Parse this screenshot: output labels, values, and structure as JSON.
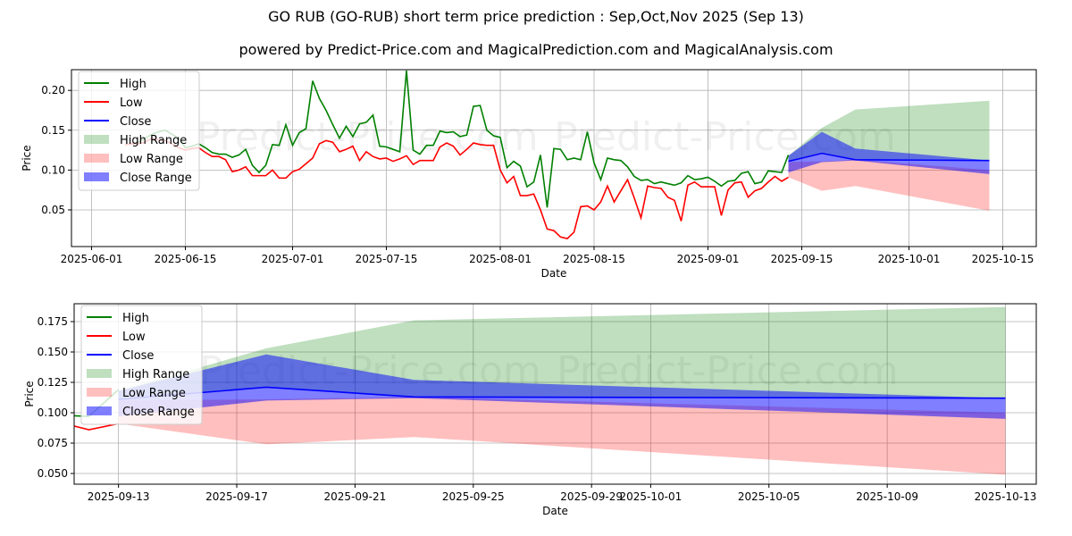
{
  "title": "GO RUB (GO-RUB) short term price prediction : Sep,Oct,Nov 2025 (Sep 13)",
  "subtitle": "powered by Predict-Price.com and MagicalPrediction.com and MagicalAnalysis.com",
  "watermark": "Predict-Price.com",
  "colors": {
    "high": "#008000",
    "low": "#ff0000",
    "close": "#0000ff"
  },
  "legend": [
    "High",
    "Low",
    "Close",
    "High Range",
    "Low Range",
    "Close Range"
  ],
  "chart_data": [
    {
      "type": "line",
      "name": "full-history",
      "xlabel": "Date",
      "ylabel": "Price",
      "xlim": [
        "2025-05-29",
        "2025-10-20"
      ],
      "ylim": [
        0.004,
        0.226
      ],
      "yticks": [
        0.05,
        0.1,
        0.15,
        0.2
      ],
      "ytick_labels": [
        "0.05",
        "0.10",
        "0.15",
        "0.20"
      ],
      "xticks": [
        "2025-06-01",
        "2025-06-15",
        "2025-07-01",
        "2025-07-15",
        "2025-08-01",
        "2025-08-15",
        "2025-09-01",
        "2025-09-15",
        "2025-10-01",
        "2025-10-15"
      ],
      "grid": true,
      "legend_position": "top-left",
      "history_start": "2025-06-06",
      "high": [
        0.132,
        0.133,
        0.135,
        0.14,
        0.145,
        0.148,
        0.15,
        0.145,
        0.14,
        0.128,
        0.13,
        0.133,
        0.128,
        0.122,
        0.12,
        0.12,
        0.116,
        0.119,
        0.126,
        0.106,
        0.097,
        0.106,
        0.132,
        0.131,
        0.157,
        0.131,
        0.147,
        0.152,
        0.212,
        0.19,
        0.175,
        0.157,
        0.14,
        0.155,
        0.142,
        0.158,
        0.16,
        0.169,
        0.13,
        0.129,
        0.126,
        0.123,
        0.225,
        0.125,
        0.12,
        0.131,
        0.131,
        0.149,
        0.147,
        0.148,
        0.142,
        0.144,
        0.18,
        0.181,
        0.15,
        0.143,
        0.141,
        0.103,
        0.111,
        0.105,
        0.079,
        0.085,
        0.119,
        0.053,
        0.127,
        0.126,
        0.113,
        0.115,
        0.113,
        0.148,
        0.109,
        0.088,
        0.115,
        0.113,
        0.112,
        0.104,
        0.092,
        0.087,
        0.088,
        0.083,
        0.085,
        0.083,
        0.081,
        0.084,
        0.093,
        0.088,
        0.089,
        0.091,
        0.086,
        0.08,
        0.086,
        0.087,
        0.096,
        0.098,
        0.083,
        0.085,
        0.099,
        0.098,
        0.097,
        0.119
      ],
      "low": [
        0.132,
        0.133,
        0.133,
        0.135,
        0.14,
        0.138,
        0.137,
        0.133,
        0.128,
        0.125,
        0.127,
        0.128,
        0.122,
        0.117,
        0.117,
        0.113,
        0.098,
        0.1,
        0.104,
        0.093,
        0.093,
        0.093,
        0.1,
        0.09,
        0.09,
        0.098,
        0.101,
        0.108,
        0.115,
        0.133,
        0.137,
        0.135,
        0.123,
        0.126,
        0.13,
        0.112,
        0.123,
        0.117,
        0.114,
        0.115,
        0.111,
        0.114,
        0.118,
        0.107,
        0.112,
        0.112,
        0.112,
        0.129,
        0.134,
        0.13,
        0.119,
        0.126,
        0.134,
        0.132,
        0.131,
        0.131,
        0.1,
        0.084,
        0.092,
        0.068,
        0.068,
        0.07,
        0.05,
        0.026,
        0.024,
        0.016,
        0.014,
        0.022,
        0.054,
        0.055,
        0.05,
        0.06,
        0.08,
        0.06,
        0.074,
        0.088,
        0.065,
        0.04,
        0.08,
        0.078,
        0.077,
        0.066,
        0.062,
        0.036,
        0.081,
        0.085,
        0.079,
        0.079,
        0.079,
        0.043,
        0.075,
        0.084,
        0.085,
        0.066,
        0.074,
        0.077,
        0.085,
        0.092,
        0.086,
        0.091
      ]
    },
    {
      "type": "area",
      "name": "forecast-zoom",
      "xlabel": "Date",
      "ylabel": "Price",
      "xlim": [
        "2025-09-11T12:00",
        "2025-10-14T01:00"
      ],
      "ylim": [
        0.0412,
        0.1897
      ],
      "yticks": [
        0.05,
        0.075,
        0.1,
        0.125,
        0.15,
        0.175
      ],
      "ytick_labels": [
        "0.050",
        "0.075",
        "0.100",
        "0.125",
        "0.150",
        "0.175"
      ],
      "xticks": [
        "2025-09-13",
        "2025-09-17",
        "2025-09-21",
        "2025-09-25",
        "2025-09-29",
        "2025-10-01",
        "2025-10-05",
        "2025-10-09",
        "2025-10-13"
      ],
      "grid": true,
      "legend_position": "top-left"
    }
  ],
  "forecast": {
    "dates": [
      "2025-09-13",
      "2025-09-18",
      "2025-09-23",
      "2025-10-13"
    ],
    "close": [
      0.111,
      0.121,
      0.113,
      0.112
    ],
    "high_range_upper": [
      0.118,
      0.153,
      0.176,
      0.187
    ],
    "high_range_lower": [
      0.111,
      0.121,
      0.113,
      0.112
    ],
    "low_range_upper": [
      0.11,
      0.111,
      0.113,
      0.1
    ],
    "low_range_lower": [
      0.091,
      0.074,
      0.08,
      0.049
    ],
    "close_range_upper": [
      0.118,
      0.148,
      0.127,
      0.112
    ],
    "close_range_lower": [
      0.097,
      0.11,
      0.112,
      0.095
    ]
  }
}
